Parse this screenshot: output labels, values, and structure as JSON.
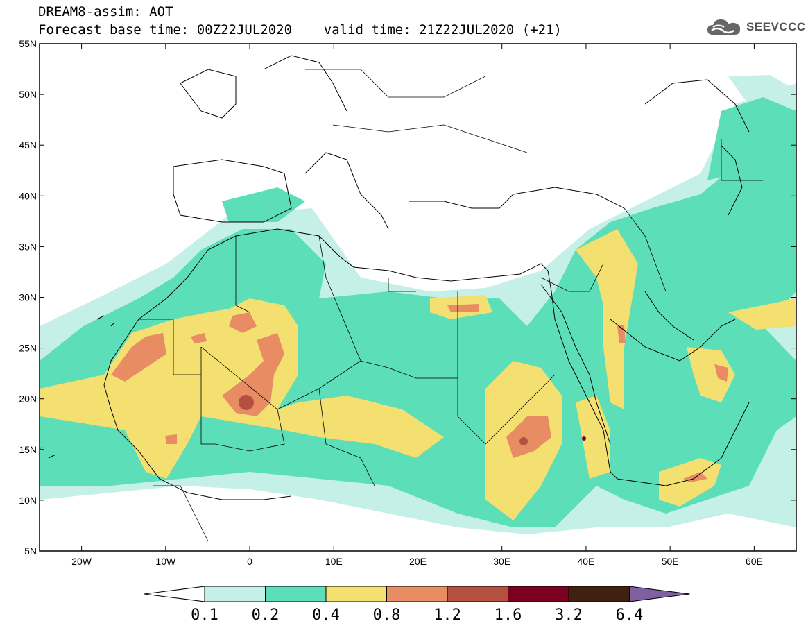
{
  "title": {
    "line1": "DREAM8-assim: AOT",
    "line2": "Forecast base time: 00Z22JUL2020    valid time: 21Z22JUL2020 (+21)"
  },
  "logo": {
    "text": "SEEVCCC",
    "icon": "cloud-icon"
  },
  "map": {
    "lon_range": [
      -25,
      65
    ],
    "lat_range": [
      5,
      55
    ],
    "lon_ticks": [
      {
        "value": -20,
        "label": "20W"
      },
      {
        "value": -10,
        "label": "10W"
      },
      {
        "value": 0,
        "label": "0"
      },
      {
        "value": 10,
        "label": "10E"
      },
      {
        "value": 20,
        "label": "20E"
      },
      {
        "value": 30,
        "label": "30E"
      },
      {
        "value": 40,
        "label": "40E"
      },
      {
        "value": 50,
        "label": "50E"
      },
      {
        "value": 60,
        "label": "60E"
      }
    ],
    "lat_ticks": [
      {
        "value": 55,
        "label": "55N"
      },
      {
        "value": 50,
        "label": "50N"
      },
      {
        "value": 45,
        "label": "45N"
      },
      {
        "value": 40,
        "label": "40N"
      },
      {
        "value": 35,
        "label": "35N"
      },
      {
        "value": 30,
        "label": "30N"
      },
      {
        "value": 25,
        "label": "25N"
      },
      {
        "value": 20,
        "label": "20N"
      },
      {
        "value": 15,
        "label": "15N"
      },
      {
        "value": 10,
        "label": "10N"
      },
      {
        "value": 5,
        "label": "5N"
      }
    ],
    "variable": "AOT"
  },
  "colorbar": {
    "labels": [
      "0.1",
      "0.2",
      "0.4",
      "0.8",
      "1.2",
      "1.6",
      "3.2",
      "6.4"
    ],
    "colors": [
      "#ffffff",
      "#c4f0e8",
      "#5cdeb8",
      "#f4e070",
      "#e88c64",
      "#b45040",
      "#7c0020",
      "#402010",
      "#8060a0"
    ]
  }
}
